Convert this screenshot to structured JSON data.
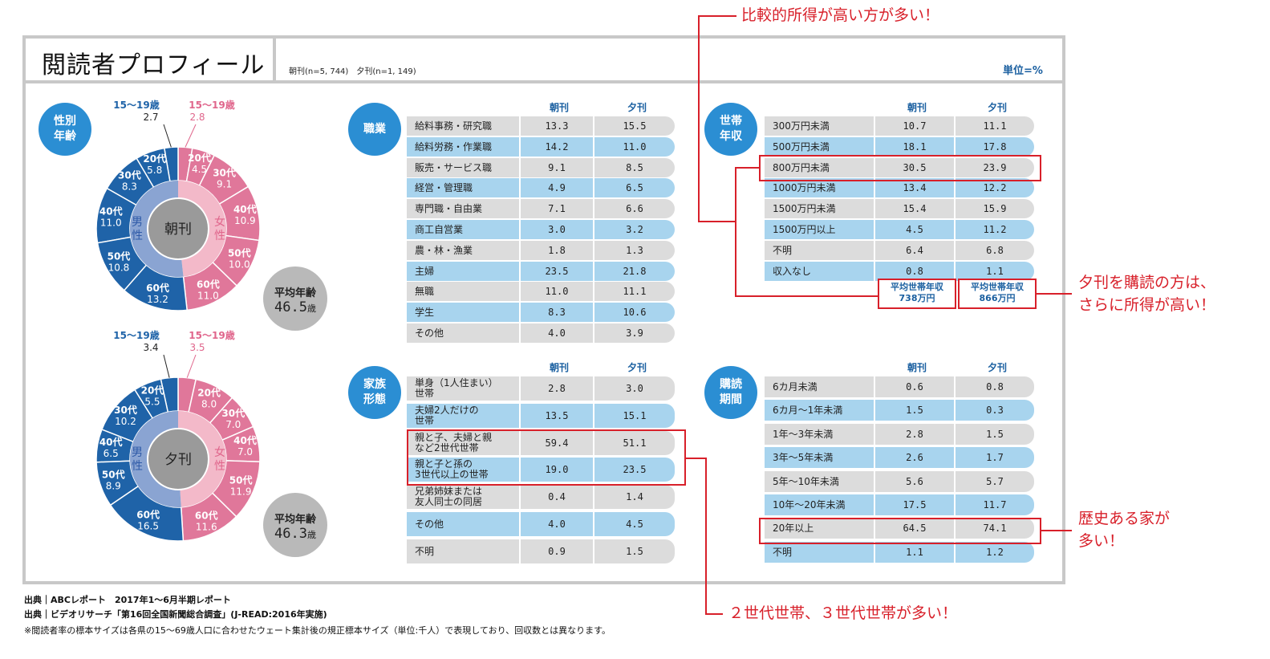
{
  "title": "閲読者プロフィール",
  "sample_note": "朝刊(n=5, 744)　夕刊(n=1, 149)",
  "unit": "単位=%",
  "headers": {
    "morning": "朝刊",
    "evening": "夕刊"
  },
  "badges": {
    "gender_age": "性別\n年齢",
    "occupation": "職業",
    "income": "世帯\n年収",
    "family": "家族\n形態",
    "period": "購読\n期間"
  },
  "gender": {
    "male": "男\n性",
    "female": "女\n性"
  },
  "avg_age_label": "平均年齢",
  "avg_age_unit": "歳",
  "colors": {
    "male": "#1f63a8",
    "female": "#e0779a",
    "male_inner": "#8aa4d2",
    "female_inner": "#f3b9c9",
    "badge": "#2b8ed3",
    "red": "#d8202a"
  },
  "chart_data": [
    {
      "type": "pie",
      "name": "朝刊",
      "avg_age": "46.5",
      "male": [
        {
          "label": "15〜19歳",
          "value": 2.7,
          "value_text": "2.7"
        },
        {
          "label": "20代",
          "value": 5.8,
          "value_text": "5.8"
        },
        {
          "label": "30代",
          "value": 8.3,
          "value_text": "8.3"
        },
        {
          "label": "40代",
          "value": 11.0,
          "value_text": "11.0"
        },
        {
          "label": "50代",
          "value": 10.8,
          "value_text": "10.8"
        },
        {
          "label": "60代",
          "value": 13.2,
          "value_text": "13.2"
        }
      ],
      "female": [
        {
          "label": "15〜19歳",
          "value": 2.8,
          "value_text": "2.8"
        },
        {
          "label": "20代",
          "value": 4.5,
          "value_text": "4.5"
        },
        {
          "label": "30代",
          "value": 9.1,
          "value_text": "9.1"
        },
        {
          "label": "40代",
          "value": 10.9,
          "value_text": "10.9"
        },
        {
          "label": "50代",
          "value": 10.0,
          "value_text": "10.0"
        },
        {
          "label": "60代",
          "value": 11.0,
          "value_text": "11.0"
        }
      ]
    },
    {
      "type": "pie",
      "name": "夕刊",
      "avg_age": "46.3",
      "male": [
        {
          "label": "15〜19歳",
          "value": 3.4,
          "value_text": "3.4"
        },
        {
          "label": "20代",
          "value": 5.5,
          "value_text": "5.5"
        },
        {
          "label": "30代",
          "value": 10.2,
          "value_text": "10.2"
        },
        {
          "label": "40代",
          "value": 6.5,
          "value_text": "6.5"
        },
        {
          "label": "50代",
          "value": 8.9,
          "value_text": "8.9"
        },
        {
          "label": "60代",
          "value": 16.5,
          "value_text": "16.5"
        }
      ],
      "female": [
        {
          "label": "15〜19歳",
          "value": 3.5,
          "value_text": "3.5"
        },
        {
          "label": "20代",
          "value": 8.0,
          "value_text": "8.0"
        },
        {
          "label": "30代",
          "value": 7.0,
          "value_text": "7.0"
        },
        {
          "label": "40代",
          "value": 7.0,
          "value_text": "7.0"
        },
        {
          "label": "50代",
          "value": 11.9,
          "value_text": "11.9"
        },
        {
          "label": "60代",
          "value": 11.6,
          "value_text": "11.6"
        }
      ]
    },
    {
      "type": "table",
      "name": "職業",
      "rows": [
        [
          "給料事務・研究職",
          "13.3",
          "15.5"
        ],
        [
          "給料労務・作業職",
          "14.2",
          "11.0"
        ],
        [
          "販売・サービス職",
          "9.1",
          "8.5"
        ],
        [
          "経営・管理職",
          "4.9",
          "6.5"
        ],
        [
          "専門職・自由業",
          "7.1",
          "6.6"
        ],
        [
          "商工自営業",
          "3.0",
          "3.2"
        ],
        [
          "農・林・漁業",
          "1.8",
          "1.3"
        ],
        [
          "主婦",
          "23.5",
          "21.8"
        ],
        [
          "無職",
          "11.0",
          "11.1"
        ],
        [
          "学生",
          "8.3",
          "10.6"
        ],
        [
          "その他",
          "4.0",
          "3.9"
        ]
      ]
    },
    {
      "type": "table",
      "name": "世帯年収",
      "rows": [
        [
          "300万円未満",
          "10.7",
          "11.1"
        ],
        [
          "500万円未満",
          "18.1",
          "17.8"
        ],
        [
          "800万円未満",
          "30.5",
          "23.9"
        ],
        [
          "1000万円未満",
          "13.4",
          "12.2"
        ],
        [
          "1500万円未満",
          "15.4",
          "15.9"
        ],
        [
          "1500万円以上",
          "4.5",
          "11.2"
        ],
        [
          "不明",
          "6.4",
          "6.8"
        ],
        [
          "収入なし",
          "0.8",
          "1.1"
        ]
      ],
      "avg_morning": "平均世帯年収\n738万円",
      "avg_evening": "平均世帯年収\n866万円"
    },
    {
      "type": "table",
      "name": "家族形態",
      "rows": [
        [
          "単身（1人住まい）\n世帯",
          "2.8",
          "3.0"
        ],
        [
          "夫婦2人だけの\n世帯",
          "13.5",
          "15.1"
        ],
        [
          "親と子、夫婦と親\nなど2世代世帯",
          "59.4",
          "51.1"
        ],
        [
          "親と子と孫の\n3世代以上の世帯",
          "19.0",
          "23.5"
        ],
        [
          "兄弟姉妹または\n友人同士の同居",
          "0.4",
          "1.4"
        ],
        [
          "その他",
          "4.0",
          "4.5"
        ],
        [
          "不明",
          "0.9",
          "1.5"
        ]
      ]
    },
    {
      "type": "table",
      "name": "購読期間",
      "rows": [
        [
          "6カ月未満",
          "0.6",
          "0.8"
        ],
        [
          "6カ月〜1年未満",
          "1.5",
          "0.3"
        ],
        [
          "1年〜3年未満",
          "2.8",
          "1.5"
        ],
        [
          "3年〜5年未満",
          "2.6",
          "1.7"
        ],
        [
          "5年〜10年未満",
          "5.6",
          "5.7"
        ],
        [
          "10年〜20年未満",
          "17.5",
          "11.7"
        ],
        [
          "20年以上",
          "64.5",
          "74.1"
        ],
        [
          "不明",
          "1.1",
          "1.2"
        ]
      ]
    }
  ],
  "notes": {
    "income_top": "比較的所得が高い方が多い！",
    "income_side": "夕刊を購読の方は、\nさらに所得が高い！",
    "family": "２世代世帯、３世代世帯が多い！",
    "period": "歴史ある家が\n多い！"
  },
  "sources": [
    "出典｜ABCレポート　2017年1〜6月半期レポート",
    "出典｜ビデオリサーチ「第16回全国新聞総合調査」(J-READ:2016年実施)",
    "※閲読者率の標本サイズは各県の15〜69歳人口に合わせたウェート集計後の規正標本サイズ（単位:千人）で表現しており、回収数とは異なります。"
  ]
}
